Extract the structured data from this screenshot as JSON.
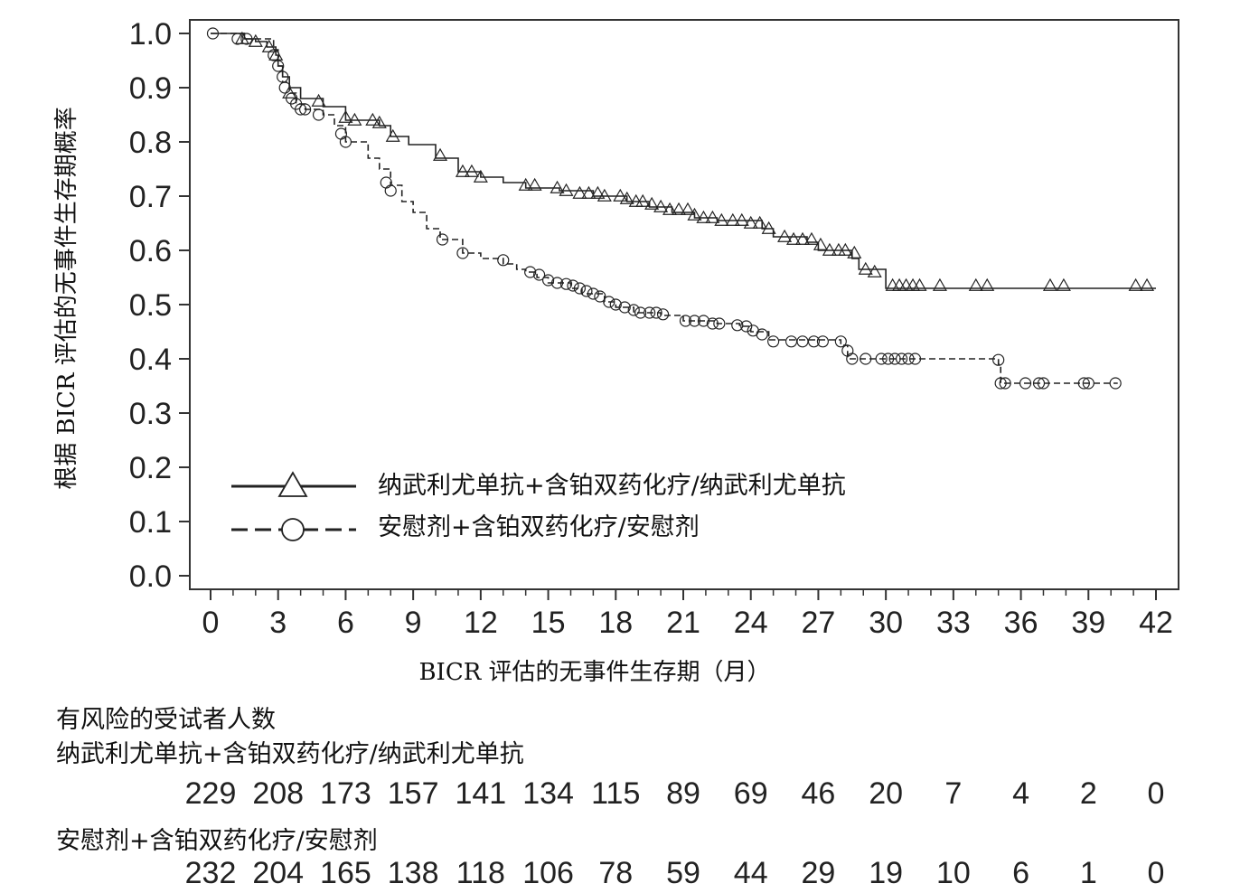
{
  "chart_data": {
    "type": "line",
    "title": "",
    "xlabel": "BICR 评估的无事件生存期（月）",
    "ylabel": "根据 BICR 评估的无事件生存期概率",
    "xlim": [
      0,
      42
    ],
    "ylim": [
      0.0,
      1.0
    ],
    "x_ticks": [
      0,
      3,
      6,
      9,
      12,
      15,
      18,
      21,
      24,
      27,
      30,
      33,
      36,
      39,
      42
    ],
    "y_ticks": [
      0.0,
      0.1,
      0.2,
      0.3,
      0.4,
      0.5,
      0.6,
      0.7,
      0.8,
      0.9,
      1.0
    ],
    "y_tick_labels": [
      "0.0",
      "0.1",
      "0.2",
      "0.3",
      "0.4",
      "0.5",
      "0.6",
      "0.7",
      "0.8",
      "0.9",
      "1.0"
    ],
    "grid": false,
    "legend_position": "bottom-left",
    "series": [
      {
        "name": "纳武利尤单抗+含铂双药化疗/纳武利尤单抗",
        "line_style": "solid",
        "marker": "triangle",
        "color": "#222222",
        "steps": [
          [
            0,
            1.0
          ],
          [
            1.5,
            0.99
          ],
          [
            2.0,
            0.985
          ],
          [
            2.5,
            0.975
          ],
          [
            2.9,
            0.96
          ],
          [
            3.0,
            0.94
          ],
          [
            3.2,
            0.92
          ],
          [
            3.5,
            0.9
          ],
          [
            4.0,
            0.88
          ],
          [
            5.0,
            0.865
          ],
          [
            6.0,
            0.84
          ],
          [
            7.5,
            0.83
          ],
          [
            8.0,
            0.81
          ],
          [
            8.8,
            0.795
          ],
          [
            10.0,
            0.77
          ],
          [
            11.0,
            0.745
          ],
          [
            12.0,
            0.735
          ],
          [
            13.0,
            0.725
          ],
          [
            14.0,
            0.715
          ],
          [
            15.5,
            0.71
          ],
          [
            17.0,
            0.7
          ],
          [
            18.5,
            0.69
          ],
          [
            19.5,
            0.68
          ],
          [
            20.5,
            0.67
          ],
          [
            21.5,
            0.66
          ],
          [
            22.5,
            0.655
          ],
          [
            24.5,
            0.64
          ],
          [
            25.0,
            0.625
          ],
          [
            26.5,
            0.615
          ],
          [
            27.0,
            0.6
          ],
          [
            28.5,
            0.585
          ],
          [
            28.8,
            0.565
          ],
          [
            30.0,
            0.53
          ],
          [
            42.0,
            0.53
          ]
        ],
        "censored": [
          [
            1.4,
            0.99
          ],
          [
            2.0,
            0.985
          ],
          [
            2.6,
            0.975
          ],
          [
            2.9,
            0.96
          ],
          [
            3.5,
            0.89
          ],
          [
            4.8,
            0.875
          ],
          [
            6.0,
            0.845
          ],
          [
            6.4,
            0.84
          ],
          [
            7.2,
            0.84
          ],
          [
            7.5,
            0.835
          ],
          [
            8.1,
            0.81
          ],
          [
            10.2,
            0.775
          ],
          [
            11.2,
            0.745
          ],
          [
            11.6,
            0.745
          ],
          [
            12.0,
            0.735
          ],
          [
            14.0,
            0.72
          ],
          [
            14.4,
            0.72
          ],
          [
            15.4,
            0.715
          ],
          [
            15.8,
            0.71
          ],
          [
            16.4,
            0.705
          ],
          [
            16.8,
            0.705
          ],
          [
            17.2,
            0.705
          ],
          [
            17.5,
            0.7
          ],
          [
            18.2,
            0.7
          ],
          [
            18.5,
            0.695
          ],
          [
            18.9,
            0.69
          ],
          [
            19.2,
            0.69
          ],
          [
            19.6,
            0.685
          ],
          [
            20.0,
            0.68
          ],
          [
            20.4,
            0.675
          ],
          [
            20.8,
            0.675
          ],
          [
            21.2,
            0.675
          ],
          [
            21.5,
            0.665
          ],
          [
            21.9,
            0.66
          ],
          [
            22.3,
            0.66
          ],
          [
            22.7,
            0.655
          ],
          [
            23.2,
            0.655
          ],
          [
            23.6,
            0.655
          ],
          [
            24.0,
            0.65
          ],
          [
            24.4,
            0.65
          ],
          [
            24.8,
            0.64
          ],
          [
            25.5,
            0.625
          ],
          [
            25.9,
            0.62
          ],
          [
            26.3,
            0.62
          ],
          [
            26.7,
            0.62
          ],
          [
            27.1,
            0.61
          ],
          [
            27.5,
            0.6
          ],
          [
            27.9,
            0.6
          ],
          [
            28.2,
            0.6
          ],
          [
            28.6,
            0.595
          ],
          [
            29.1,
            0.565
          ],
          [
            29.5,
            0.56
          ],
          [
            30.3,
            0.535
          ],
          [
            30.6,
            0.535
          ],
          [
            30.9,
            0.535
          ],
          [
            31.2,
            0.535
          ],
          [
            31.5,
            0.535
          ],
          [
            32.4,
            0.535
          ],
          [
            34.0,
            0.535
          ],
          [
            34.5,
            0.535
          ],
          [
            37.3,
            0.535
          ],
          [
            37.9,
            0.535
          ],
          [
            41.1,
            0.535
          ],
          [
            41.6,
            0.535
          ]
        ]
      },
      {
        "name": "安慰剂+含铂双药化疗/安慰剂",
        "line_style": "dashed",
        "marker": "circle",
        "color": "#222222",
        "steps": [
          [
            0,
            1.0
          ],
          [
            1.5,
            0.99
          ],
          [
            2.8,
            0.97
          ],
          [
            3.0,
            0.94
          ],
          [
            3.2,
            0.91
          ],
          [
            3.5,
            0.89
          ],
          [
            3.8,
            0.87
          ],
          [
            4.2,
            0.86
          ],
          [
            5.0,
            0.85
          ],
          [
            5.5,
            0.83
          ],
          [
            6.0,
            0.8
          ],
          [
            7.0,
            0.77
          ],
          [
            7.5,
            0.75
          ],
          [
            8.0,
            0.72
          ],
          [
            8.5,
            0.69
          ],
          [
            9.0,
            0.67
          ],
          [
            9.6,
            0.64
          ],
          [
            10.2,
            0.62
          ],
          [
            11.2,
            0.595
          ],
          [
            12.0,
            0.585
          ],
          [
            13.0,
            0.575
          ],
          [
            13.6,
            0.565
          ],
          [
            14.0,
            0.56
          ],
          [
            14.5,
            0.55
          ],
          [
            15.0,
            0.54
          ],
          [
            16.0,
            0.53
          ],
          [
            16.5,
            0.52
          ],
          [
            17.5,
            0.505
          ],
          [
            18.0,
            0.495
          ],
          [
            18.8,
            0.485
          ],
          [
            20.0,
            0.48
          ],
          [
            21.0,
            0.47
          ],
          [
            22.5,
            0.465
          ],
          [
            23.5,
            0.46
          ],
          [
            24.0,
            0.45
          ],
          [
            24.8,
            0.435
          ],
          [
            28.0,
            0.425
          ],
          [
            28.3,
            0.4
          ],
          [
            35.0,
            0.39
          ],
          [
            35.1,
            0.355
          ],
          [
            40.3,
            0.355
          ]
        ],
        "censored": [
          [
            0.1,
            1.0
          ],
          [
            1.2,
            0.99
          ],
          [
            1.6,
            0.99
          ],
          [
            2.8,
            0.96
          ],
          [
            3.0,
            0.94
          ],
          [
            3.2,
            0.92
          ],
          [
            3.3,
            0.9
          ],
          [
            3.6,
            0.88
          ],
          [
            3.8,
            0.87
          ],
          [
            4.0,
            0.86
          ],
          [
            4.2,
            0.86
          ],
          [
            4.8,
            0.85
          ],
          [
            5.8,
            0.815
          ],
          [
            6.0,
            0.8
          ],
          [
            7.8,
            0.725
          ],
          [
            8.0,
            0.71
          ],
          [
            10.3,
            0.62
          ],
          [
            11.2,
            0.595
          ],
          [
            13.0,
            0.582
          ],
          [
            14.2,
            0.56
          ],
          [
            14.6,
            0.555
          ],
          [
            15.0,
            0.545
          ],
          [
            15.4,
            0.54
          ],
          [
            15.8,
            0.538
          ],
          [
            16.1,
            0.535
          ],
          [
            16.4,
            0.53
          ],
          [
            16.7,
            0.525
          ],
          [
            17.0,
            0.52
          ],
          [
            17.3,
            0.515
          ],
          [
            17.7,
            0.505
          ],
          [
            18.0,
            0.5
          ],
          [
            18.4,
            0.495
          ],
          [
            18.8,
            0.49
          ],
          [
            19.1,
            0.485
          ],
          [
            19.5,
            0.485
          ],
          [
            19.8,
            0.485
          ],
          [
            20.1,
            0.482
          ],
          [
            21.1,
            0.47
          ],
          [
            21.5,
            0.47
          ],
          [
            21.9,
            0.47
          ],
          [
            22.3,
            0.465
          ],
          [
            22.6,
            0.465
          ],
          [
            23.4,
            0.462
          ],
          [
            23.8,
            0.46
          ],
          [
            24.1,
            0.452
          ],
          [
            24.5,
            0.445
          ],
          [
            25.0,
            0.432
          ],
          [
            25.8,
            0.432
          ],
          [
            26.3,
            0.432
          ],
          [
            26.8,
            0.432
          ],
          [
            27.2,
            0.432
          ],
          [
            28.0,
            0.432
          ],
          [
            28.3,
            0.415
          ],
          [
            28.5,
            0.4
          ],
          [
            29.1,
            0.4
          ],
          [
            29.8,
            0.4
          ],
          [
            30.1,
            0.4
          ],
          [
            30.4,
            0.4
          ],
          [
            30.7,
            0.4
          ],
          [
            31.0,
            0.4
          ],
          [
            31.3,
            0.4
          ],
          [
            35.0,
            0.398
          ],
          [
            35.1,
            0.355
          ],
          [
            35.3,
            0.355
          ],
          [
            36.2,
            0.355
          ],
          [
            36.8,
            0.355
          ],
          [
            37.0,
            0.355
          ],
          [
            38.8,
            0.355
          ],
          [
            39.0,
            0.355
          ],
          [
            40.2,
            0.355
          ]
        ]
      }
    ],
    "risk_table": {
      "title": "有风险的受试者人数",
      "times": [
        0,
        3,
        6,
        9,
        12,
        15,
        18,
        21,
        24,
        27,
        30,
        33,
        36,
        39,
        42
      ],
      "rows": [
        {
          "label": "纳武利尤单抗+含铂双药化疗/纳武利尤单抗",
          "values": [
            "229",
            "208",
            "173",
            "157",
            "141",
            "134",
            "115",
            "89",
            "69",
            "46",
            "20",
            "7",
            "4",
            "2",
            "0"
          ]
        },
        {
          "label": "安慰剂+含铂双药化疗/安慰剂",
          "values": [
            "232",
            "204",
            "165",
            "138",
            "118",
            "106",
            "78",
            "59",
            "44",
            "29",
            "19",
            "10",
            "6",
            "1",
            "0"
          ]
        }
      ]
    }
  }
}
